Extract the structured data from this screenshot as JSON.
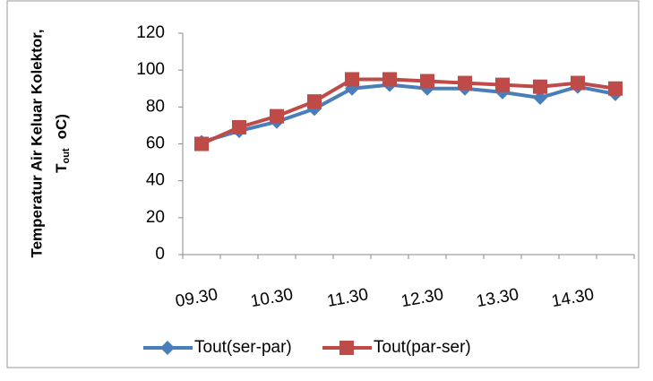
{
  "chart_data": {
    "type": "line",
    "categories": [
      "09.30",
      null,
      "10.30",
      null,
      "11.30",
      null,
      "12.30",
      null,
      "13.30",
      null,
      "14.30",
      null
    ],
    "series": [
      {
        "name": "Tout(ser-par)",
        "color": "#4a7ebb",
        "marker": "diamond",
        "values": [
          61,
          67,
          72,
          79,
          90,
          92,
          90,
          90,
          88,
          85,
          91,
          87
        ]
      },
      {
        "name": "Tout(par-ser)",
        "color": "#be4b48",
        "marker": "square",
        "values": [
          60,
          69,
          75,
          83,
          95,
          95,
          94,
          93,
          92,
          91,
          93,
          90
        ]
      }
    ],
    "ylabel": {
      "main": "Temperatur Air Keluar Kolektor,",
      "symbol": "T",
      "subscript": "out",
      "unit": "oC)"
    },
    "ylim": [
      0,
      120
    ],
    "yticks": [
      0,
      20,
      40,
      60,
      80,
      100,
      120
    ],
    "grid": false,
    "legend": "bottom"
  }
}
